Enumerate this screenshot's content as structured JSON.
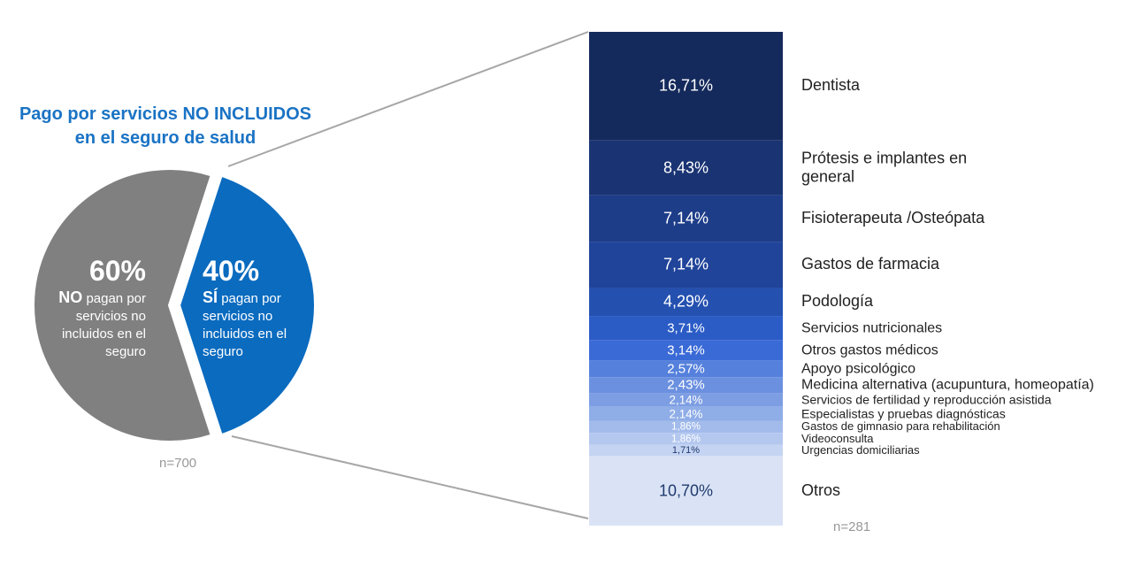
{
  "chart_data": [
    {
      "type": "pie",
      "title": "Pago por servicios NO INCLUIDOS en el seguro de salud",
      "values": [
        60,
        40
      ],
      "value_labels": [
        "60%",
        "40%"
      ],
      "emphasis": [
        "NO",
        "SÍ"
      ],
      "categories": [
        "pagan por servicios no incluidos en el seguro",
        "pagan por servicios no incluidos en el seguro"
      ],
      "colors": [
        "#808080",
        "#0a6bbf"
      ],
      "note": "n=700"
    },
    {
      "type": "bar",
      "categories": [
        "Dentista",
        "Prótesis e implantes en general",
        "Fisioterapeuta /Osteópata",
        "Gastos de farmacia",
        "Podología",
        "Servicios nutricionales",
        "Otros gastos médicos",
        "Apoyo psicológico",
        "Medicina alternativa (acupuntura, homeopatía)",
        "Servicios de fertilidad y reproducción asistida",
        "Especialistas y pruebas diagnósticas",
        "Gastos de gimnasio para rehabilitación",
        "Videoconsulta",
        "Urgencias domiciliarias",
        "Otros"
      ],
      "values": [
        16.71,
        8.43,
        7.14,
        7.14,
        4.29,
        3.71,
        3.14,
        2.57,
        2.43,
        2.14,
        2.14,
        1.86,
        1.86,
        1.71,
        10.7
      ],
      "value_labels": [
        "16,71%",
        "8,43%",
        "7,14%",
        "7,14%",
        "4,29%",
        "3,71%",
        "3,14%",
        "2,57%",
        "2,43%",
        "2,14%",
        "2,14%",
        "1,86%",
        "1,86%",
        "1,71%",
        "10,70%"
      ],
      "colors": [
        "#152a5c",
        "#1a3473",
        "#1d3d89",
        "#20449a",
        "#2451b0",
        "#2b5cc6",
        "#3a6ad6",
        "#5580dc",
        "#6b90e0",
        "#7d9ee3",
        "#8fade7",
        "#a2bbeb",
        "#b4c8ef",
        "#c5d4f2",
        "#dae3f5"
      ],
      "note": "n=281"
    }
  ]
}
